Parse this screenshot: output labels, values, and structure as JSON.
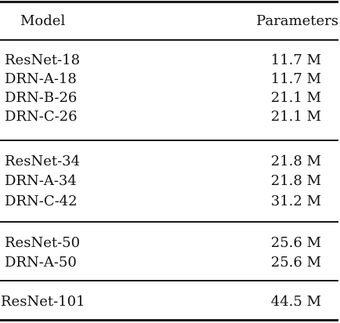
{
  "table": {
    "header": {
      "model": "Model",
      "parameters": "Parameters"
    },
    "groups": [
      [
        {
          "model": "ResNet-18",
          "parameters": "11.7 M"
        },
        {
          "model": "DRN-A-18",
          "parameters": "11.7 M"
        },
        {
          "model": "DRN-B-26",
          "parameters": "21.1 M"
        },
        {
          "model": "DRN-C-26",
          "parameters": "21.1 M"
        }
      ],
      [
        {
          "model": "ResNet-34",
          "parameters": "21.8 M"
        },
        {
          "model": "DRN-A-34",
          "parameters": "21.8 M"
        },
        {
          "model": "DRN-C-42",
          "parameters": "31.2 M"
        }
      ],
      [
        {
          "model": "ResNet-50",
          "parameters": "25.6 M"
        },
        {
          "model": "DRN-A-50",
          "parameters": "25.6 M"
        }
      ],
      [
        {
          "model": "ResNet-101",
          "parameters": "44.5 M"
        }
      ]
    ]
  }
}
